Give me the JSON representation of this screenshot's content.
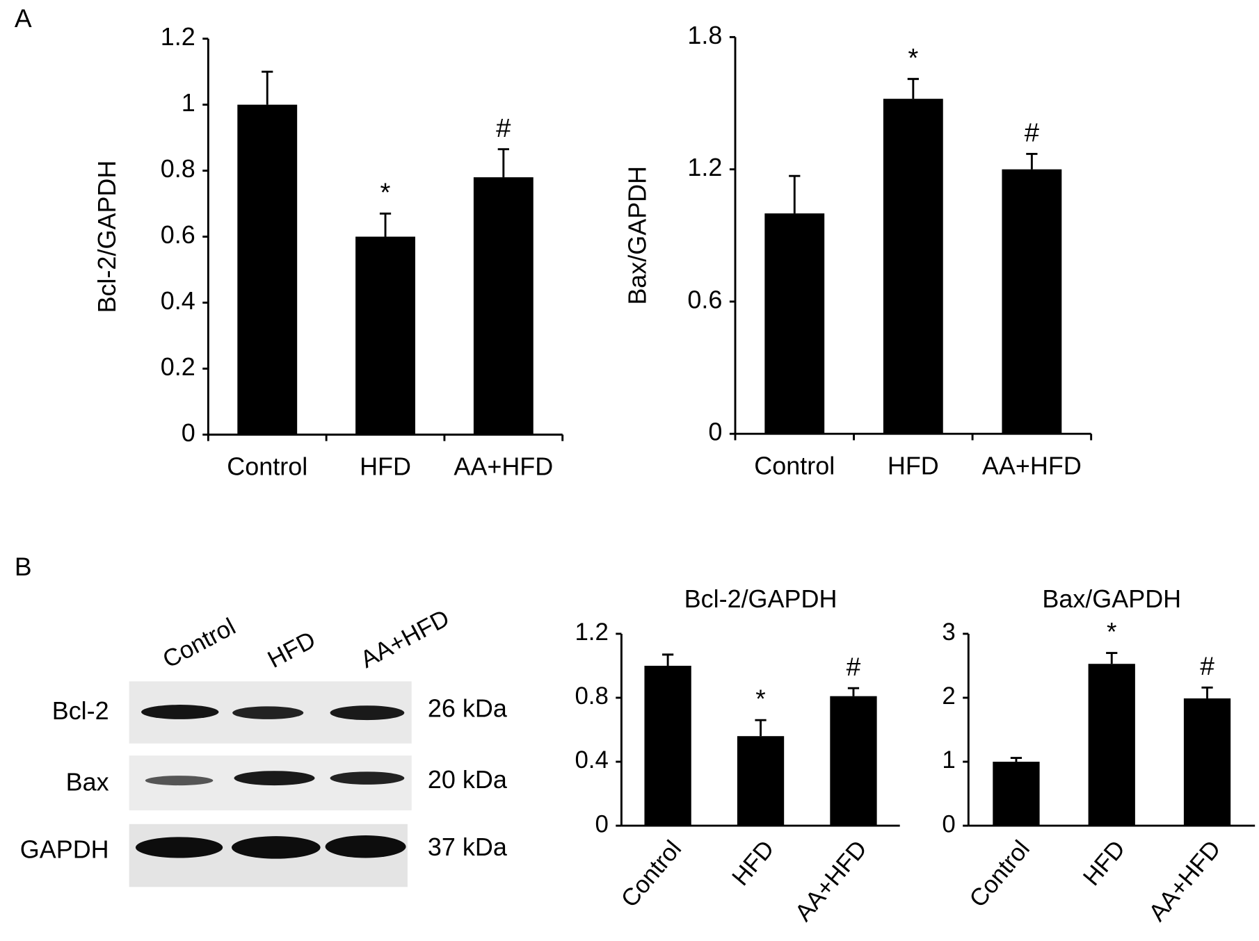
{
  "panels": {
    "a": "A",
    "b": "B"
  },
  "blot": {
    "lanes": [
      "Control",
      "HFD",
      "AA+HFD"
    ],
    "rows": [
      {
        "protein": "Bcl-2",
        "size": "26 kDa"
      },
      {
        "protein": "Bax",
        "size": "20 kDa"
      },
      {
        "protein": "GAPDH",
        "size": "37 kDa"
      }
    ]
  },
  "chart_data": [
    {
      "type": "bar",
      "ylabel": "Bcl-2/GAPDH",
      "categories": [
        "Control",
        "HFD",
        "AA+HFD"
      ],
      "values": [
        1.0,
        0.6,
        0.78
      ],
      "errors": [
        0.1,
        0.07,
        0.085
      ],
      "significance": [
        null,
        "*",
        "#"
      ],
      "color": "#000000",
      "ylim": [
        0,
        1.2
      ],
      "yticks": [
        0,
        0.2,
        0.4,
        0.6,
        0.8,
        1,
        1.2
      ]
    },
    {
      "type": "bar",
      "ylabel": "Bax/GAPDH",
      "categories": [
        "Control",
        "HFD",
        "AA+HFD"
      ],
      "values": [
        1.0,
        1.52,
        1.2
      ],
      "errors": [
        0.17,
        0.09,
        0.07
      ],
      "significance": [
        null,
        "*",
        "#"
      ],
      "color": "#000000",
      "ylim": [
        0,
        1.8
      ],
      "yticks": [
        0,
        0.6,
        1.2,
        1.8
      ]
    },
    {
      "type": "bar",
      "title": "Bcl-2/GAPDH",
      "categories": [
        "Control",
        "HFD",
        "AA+HFD"
      ],
      "values": [
        1.0,
        0.56,
        0.81
      ],
      "errors": [
        0.07,
        0.1,
        0.05
      ],
      "significance": [
        null,
        "*",
        "#"
      ],
      "color": "#000000",
      "ylim": [
        0,
        1.2
      ],
      "yticks": [
        0,
        0.4,
        0.8,
        1.2
      ]
    },
    {
      "type": "bar",
      "title": "Bax/GAPDH",
      "categories": [
        "Control",
        "HFD",
        "AA+HFD"
      ],
      "values": [
        1.0,
        2.53,
        1.99
      ],
      "errors": [
        0.06,
        0.17,
        0.17
      ],
      "significance": [
        null,
        "*",
        "#"
      ],
      "color": "#000000",
      "ylim": [
        0,
        3
      ],
      "yticks": [
        0,
        1,
        2,
        3
      ]
    }
  ]
}
